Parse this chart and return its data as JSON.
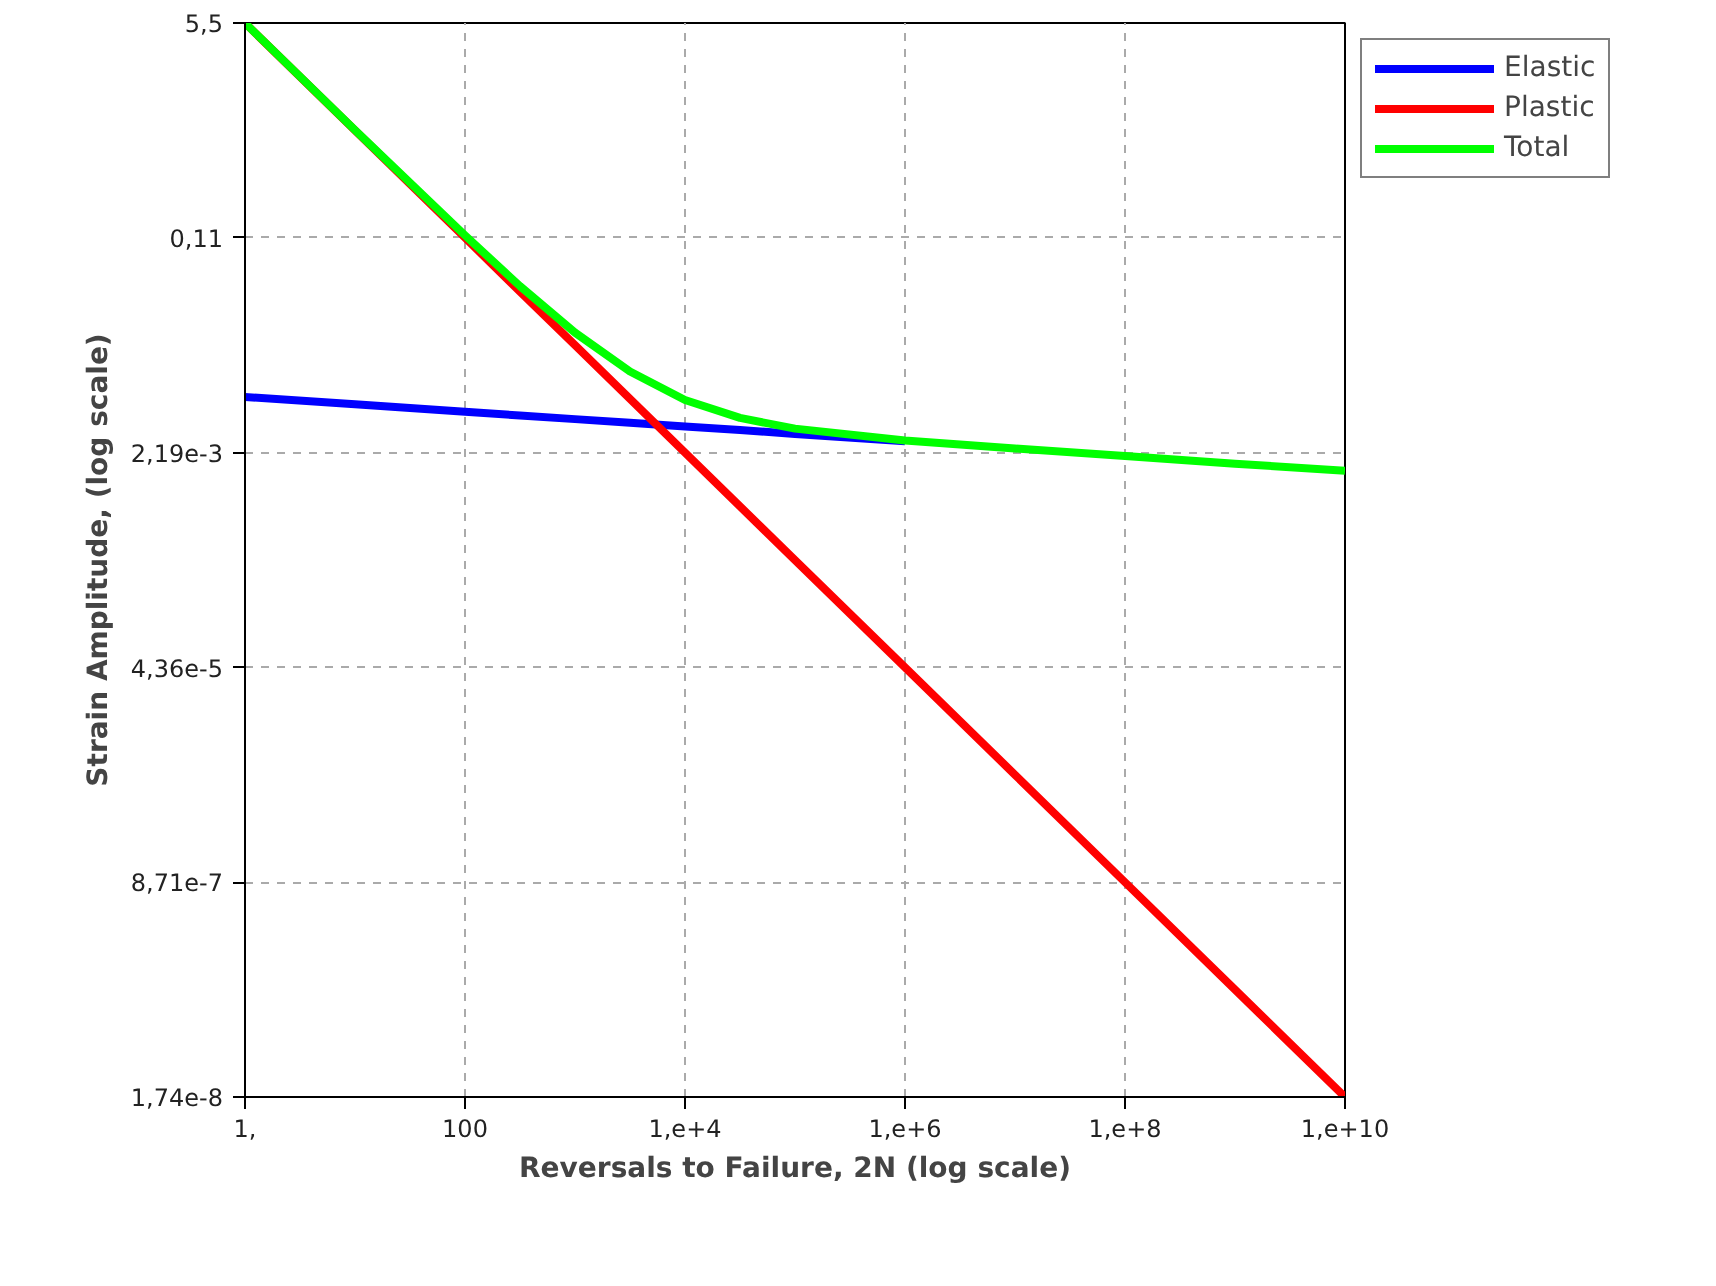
{
  "chart_data": {
    "type": "line",
    "xlabel": "Reversals to Failure, 2N (log scale)",
    "ylabel": "Strain Amplitude, (log scale)",
    "log": "xy",
    "x": [
      1,
      10,
      100,
      316,
      1000,
      3162,
      10000,
      31623,
      100000,
      1000000,
      10000000,
      100000000,
      1000000000,
      10000000000
    ],
    "series": [
      {
        "name": "Elastic",
        "color": "#0000ff",
        "values": [
          0.00604,
          0.00528,
          0.00461,
          0.00431,
          0.00403,
          0.00377,
          0.00352,
          0.0033,
          0.00308,
          0.00269,
          null,
          null,
          null,
          null
        ]
      },
      {
        "name": "Plastic",
        "color": "#ff0000",
        "values": [
          5.5,
          0.776,
          0.11,
          0.0412,
          0.0155,
          0.00582,
          0.00219,
          0.000822,
          0.000309,
          4.37e-05,
          6.17e-06,
          8.71e-07,
          1.23e-07,
          1.74e-08
        ]
      },
      {
        "name": "Total",
        "color": "#00ff00",
        "values": [
          5.5,
          0.781,
          0.1146,
          0.0455,
          0.0195,
          0.00959,
          0.00571,
          0.00412,
          0.00339,
          0.00273,
          0.00236,
          0.00206,
          0.00179,
          0.00157
        ]
      }
    ],
    "xlim": [
      1,
      10000000000
    ],
    "ylim": [
      1.74e-08,
      5.5
    ],
    "xticks": [
      {
        "value": 1,
        "label": "1,"
      },
      100,
      {
        "value": 10000,
        "label": "1,e+4"
      },
      {
        "value": 1000000,
        "label": "1,e+6"
      },
      {
        "value": 100000000,
        "label": "1,e+8"
      },
      {
        "value": 10000000000,
        "label": "1,e+10"
      }
    ],
    "yticks": [
      {
        "value": 1.74e-08,
        "label": "1,74e-8"
      },
      {
        "value": 8.71e-07,
        "label": "8,71e-7"
      },
      {
        "value": 4.36e-05,
        "label": "4,36e-5"
      },
      {
        "value": 0.00219,
        "label": "2,19e-3"
      },
      {
        "value": 0.11,
        "label": "0,11"
      },
      {
        "value": 5.5,
        "label": "5,5"
      }
    ],
    "grid": true,
    "legend": "top right",
    "line_style": "solid",
    "marker": "none"
  }
}
